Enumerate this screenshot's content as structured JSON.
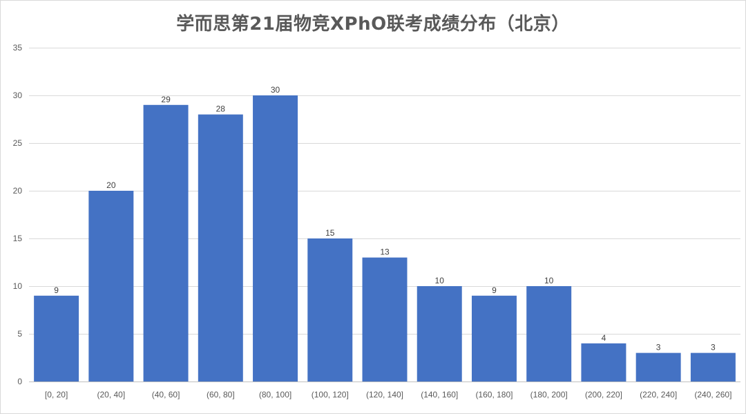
{
  "chart_data": {
    "type": "bar",
    "title": "学而思第21届物竞XPhO联考成绩分布（北京）",
    "categories": [
      "[0, 20]",
      "(20, 40]",
      "(40, 60]",
      "(60, 80]",
      "(80, 100]",
      "(100, 120]",
      "(120, 140]",
      "(140, 160]",
      "(160, 180]",
      "(180, 200]",
      "(200, 220]",
      "(220, 240]",
      "(240, 260]"
    ],
    "values": [
      9,
      20,
      29,
      28,
      30,
      15,
      13,
      10,
      9,
      10,
      4,
      3,
      3
    ],
    "ylim": [
      0,
      35
    ],
    "yticks": [
      0,
      5,
      10,
      15,
      20,
      25,
      30,
      35
    ],
    "xlabel": "",
    "ylabel": "",
    "grid": true,
    "legend": "none",
    "colors": {
      "bar": "#4472c4",
      "grid": "#d9d9d9",
      "text": "#595959"
    }
  }
}
